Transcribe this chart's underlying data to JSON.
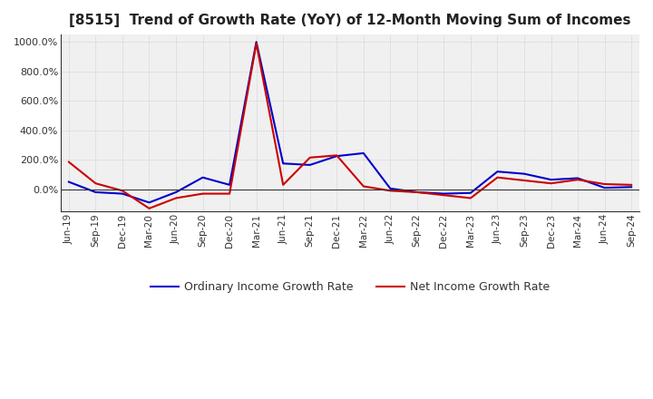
{
  "title": "[8515]  Trend of Growth Rate (YoY) of 12-Month Moving Sum of Incomes",
  "title_fontsize": 11,
  "ylim": [
    -150,
    1050
  ],
  "yticks": [
    0,
    200,
    400,
    600,
    800,
    1000
  ],
  "background_color": "#ffffff",
  "plot_bg_color": "#f0f0f0",
  "grid_color": "#aaaaaa",
  "ordinary_color": "#0000cc",
  "net_color": "#cc0000",
  "legend_labels": [
    "Ordinary Income Growth Rate",
    "Net Income Growth Rate"
  ],
  "dates": [
    "Jun-19",
    "Sep-19",
    "Dec-19",
    "Mar-20",
    "Jun-20",
    "Sep-20",
    "Dec-20",
    "Mar-21",
    "Jun-21",
    "Sep-21",
    "Dec-21",
    "Mar-22",
    "Jun-22",
    "Sep-22",
    "Dec-22",
    "Mar-23",
    "Jun-23",
    "Sep-23",
    "Dec-23",
    "Mar-24",
    "Jun-24",
    "Sep-24"
  ],
  "ordinary_income_growth": [
    50,
    -20,
    -30,
    -90,
    -20,
    80,
    30,
    1000,
    175,
    165,
    225,
    245,
    5,
    -20,
    -30,
    -25,
    120,
    105,
    65,
    75,
    10,
    15
  ],
  "net_income_growth": [
    185,
    40,
    -10,
    -130,
    -60,
    -30,
    -30,
    990,
    30,
    215,
    230,
    20,
    -10,
    -20,
    -40,
    -60,
    80,
    60,
    40,
    65,
    35,
    30
  ]
}
